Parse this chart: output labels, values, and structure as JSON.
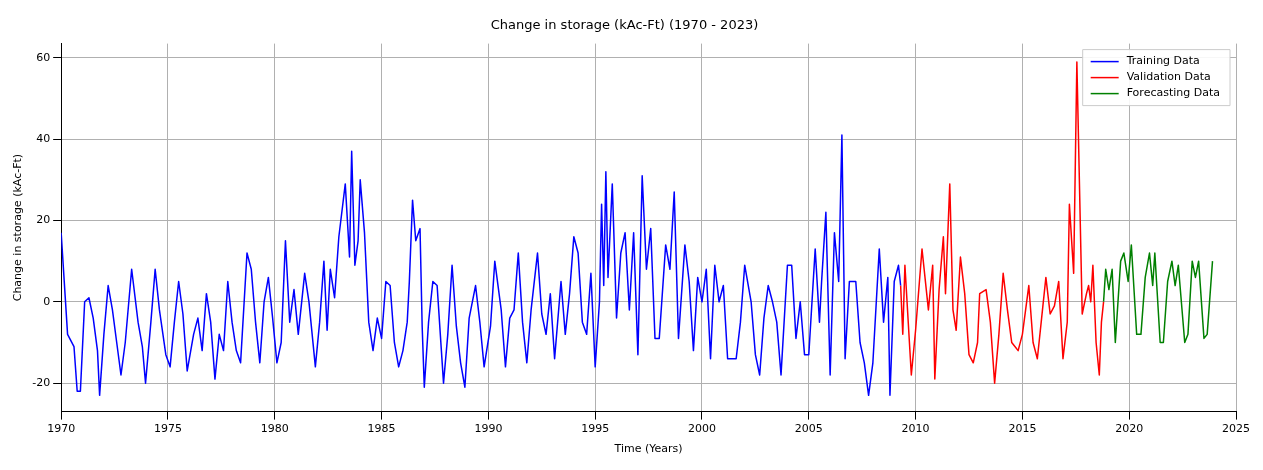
{
  "chart_data": {
    "type": "line",
    "title": "Change in storage (kAc-Ft) (1970 - 2023)",
    "xlabel": "Time (Years)",
    "ylabel": "Change in storage (kAc-Ft)",
    "xlim": [
      1970,
      2025
    ],
    "xticks": [
      1970,
      1975,
      1980,
      1985,
      1990,
      1995,
      2000,
      2005,
      2010,
      2015,
      2020,
      2025
    ],
    "ylim": [
      -27,
      63.5
    ],
    "yticks": [
      -20,
      0,
      20,
      40,
      60
    ],
    "grid": true,
    "legend": "top right",
    "marker": "none",
    "line_style": "solid",
    "series": [
      {
        "name": "Training Data",
        "color": "#0000ff",
        "x": [
          1970.0,
          1970.3,
          1970.6,
          1970.75,
          1970.9,
          1971.1,
          1971.3,
          1971.5,
          1971.7,
          1971.8,
          1972.0,
          1972.2,
          1972.4,
          1972.6,
          1972.8,
          1973.0,
          1973.3,
          1973.6,
          1973.8,
          1973.95,
          1974.2,
          1974.4,
          1974.6,
          1974.9,
          1975.1,
          1975.3,
          1975.5,
          1975.7,
          1975.9,
          1976.2,
          1976.4,
          1976.6,
          1976.8,
          1977.0,
          1977.2,
          1977.4,
          1977.6,
          1977.8,
          1978.0,
          1978.2,
          1978.4,
          1978.7,
          1978.9,
          1979.1,
          1979.3,
          1979.5,
          1979.7,
          1979.9,
          1980.1,
          1980.3,
          1980.5,
          1980.7,
          1980.9,
          1981.1,
          1981.4,
          1981.6,
          1981.9,
          1982.1,
          1982.3,
          1982.45,
          1982.6,
          1982.8,
          1983.0,
          1983.3,
          1983.5,
          1983.6,
          1983.75,
          1983.9,
          1984.0,
          1984.2,
          1984.4,
          1984.6,
          1984.8,
          1985.0,
          1985.2,
          1985.4,
          1985.6,
          1985.8,
          1986.0,
          1986.2,
          1986.3,
          1986.45,
          1986.6,
          1986.8,
          1986.9,
          1987.0,
          1987.2,
          1987.4,
          1987.6,
          1987.8,
          1987.9,
          1988.1,
          1988.3,
          1988.5,
          1988.7,
          1988.9,
          1989.1,
          1989.4,
          1989.6,
          1989.8,
          1990.1,
          1990.3,
          1990.6,
          1990.8,
          1991.0,
          1991.2,
          1991.4,
          1991.6,
          1991.8,
          1992.0,
          1992.3,
          1992.5,
          1992.7,
          1992.9,
          1993.1,
          1993.4,
          1993.6,
          1993.8,
          1994.0,
          1994.2,
          1994.4,
          1994.6,
          1994.8,
          1995.0,
          1995.2,
          1995.3,
          1995.4,
          1995.5,
          1995.6,
          1995.8,
          1996.0,
          1996.2,
          1996.4,
          1996.6,
          1996.8,
          1997.0,
          1997.2,
          1997.4,
          1997.6,
          1997.8,
          1998.0,
          1998.3,
          1998.5,
          1998.7,
          1998.9,
          1999.2,
          1999.4,
          1999.6,
          1999.8,
          2000.0,
          2000.2,
          2000.4,
          2000.6,
          2000.8,
          2001.0,
          2001.2,
          2001.6,
          2001.8,
          2002.0,
          2002.3,
          2002.5,
          2002.7,
          2002.9,
          2003.1,
          2003.3,
          2003.5,
          2003.7,
          2004.0,
          2004.2,
          2004.4,
          2004.6,
          2004.8,
          2005.0,
          2005.3,
          2005.5,
          2005.6,
          2005.8,
          2006.0,
          2006.2,
          2006.4,
          2006.55,
          2006.7,
          2006.9,
          2007.2,
          2007.4,
          2007.6,
          2007.8,
          2008.0,
          2008.3,
          2008.5,
          2008.7,
          2008.8,
          2009.0,
          2009.2,
          2009.3
        ],
        "values": [
          17,
          -8,
          -11,
          -22,
          -22,
          0,
          1,
          -4,
          -12,
          -23,
          -8,
          4,
          -2,
          -10,
          -18,
          -10,
          8,
          -5,
          -11,
          -20,
          -5,
          8,
          -2,
          -13,
          -16,
          -5,
          5,
          -3,
          -17,
          -8,
          -4,
          -12,
          2,
          -5,
          -19,
          -8,
          -12,
          5,
          -5,
          -12,
          -15,
          12,
          8,
          -5,
          -15,
          0,
          6,
          -4,
          -15,
          -10,
          15,
          -5,
          3,
          -8,
          7,
          0,
          -16,
          -5,
          10,
          -7,
          8,
          1,
          16,
          29,
          11,
          37,
          9,
          15,
          30,
          17,
          -5,
          -12,
          -4,
          -9,
          5,
          4,
          -10,
          -16,
          -12,
          -5,
          5,
          25,
          15,
          18,
          -6,
          -21,
          -5,
          5,
          4,
          -12,
          -20,
          -8,
          9,
          -6,
          -15,
          -21,
          -4,
          4,
          -5,
          -16,
          -6,
          10,
          -2,
          -16,
          -4,
          -2,
          12,
          -5,
          -15,
          -2,
          12,
          -3,
          -8,
          2,
          -14,
          5,
          -8,
          2,
          16,
          12,
          -5,
          -8,
          7,
          -16,
          0,
          24,
          4,
          32,
          6,
          29,
          -4,
          12,
          17,
          -2,
          17,
          -13,
          31,
          8,
          18,
          -9,
          -9,
          14,
          8,
          27,
          -9,
          14,
          5,
          -12,
          6,
          0,
          8,
          -14,
          9,
          0,
          4,
          -14,
          -14,
          -5,
          9,
          0,
          -13,
          -18,
          -4,
          4,
          0,
          -5,
          -18,
          9,
          9,
          -9,
          0,
          -13,
          -13,
          13,
          -5,
          5,
          22,
          -18,
          17,
          5,
          41,
          -14,
          5,
          5,
          -10,
          -15,
          -23,
          -15,
          13,
          -5,
          6,
          -23,
          5,
          9,
          4
        ]
      },
      {
        "name": "Validation Data",
        "color": "#ff0000",
        "x": [
          2009.3,
          2009.4,
          2009.5,
          2009.8,
          2010.0,
          2010.3,
          2010.6,
          2010.8,
          2010.9,
          2011.1,
          2011.3,
          2011.4,
          2011.6,
          2011.75,
          2011.9,
          2012.1,
          2012.3,
          2012.5,
          2012.7,
          2012.9,
          2013.0,
          2013.3,
          2013.5,
          2013.7,
          2013.9,
          2014.1,
          2014.3,
          2014.5,
          2014.8,
          2015.0,
          2015.3,
          2015.5,
          2015.7,
          2015.9,
          2016.1,
          2016.3,
          2016.5,
          2016.7,
          2016.9,
          2017.1,
          2017.2,
          2017.4,
          2017.55,
          2017.8,
          2018.0,
          2018.1,
          2018.2,
          2018.3,
          2018.45,
          2018.6,
          2018.7,
          2018.8
        ],
        "values": [
          4,
          -8,
          9,
          -18,
          -7,
          13,
          -2,
          9,
          -19,
          3,
          16,
          2,
          29,
          -2,
          -7,
          11,
          2,
          -13,
          -15,
          -10,
          2,
          3,
          -5,
          -20,
          -8,
          7,
          -2,
          -10,
          -12,
          -8,
          4,
          -10,
          -14,
          -4,
          6,
          -3,
          -1,
          5,
          -14,
          -5,
          24,
          7,
          59,
          -3,
          2,
          4,
          0,
          9,
          -10,
          -18,
          -5,
          0
        ]
      },
      {
        "name": "Forecasting Data",
        "color": "#008000",
        "x": [
          2018.8,
          2018.9,
          2019.05,
          2019.2,
          2019.35,
          2019.6,
          2019.75,
          2019.95,
          2020.1,
          2020.35,
          2020.55,
          2020.75,
          2020.95,
          2021.1,
          2021.2,
          2021.45,
          2021.6,
          2021.8,
          2022.0,
          2022.15,
          2022.3,
          2022.6,
          2022.75,
          2022.95,
          2023.1,
          2023.25,
          2023.5,
          2023.65,
          2023.9
        ],
        "values": [
          0,
          8,
          3,
          8,
          -10,
          10,
          12,
          5,
          14,
          -8,
          -8,
          6,
          12,
          4,
          12,
          -10,
          -10,
          5,
          10,
          4,
          9,
          -10,
          -8,
          10,
          6,
          10,
          -9,
          -8,
          10
        ]
      }
    ]
  }
}
